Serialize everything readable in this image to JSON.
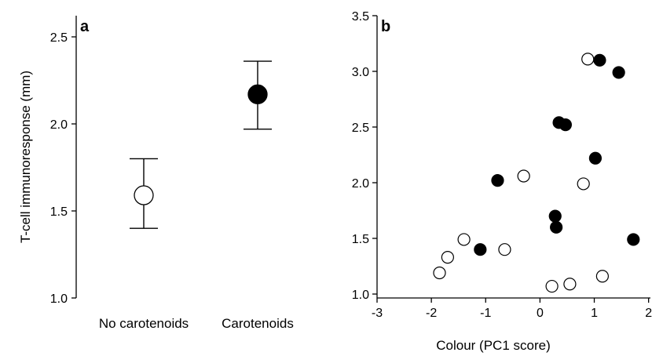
{
  "chart_data": [
    {
      "type": "scatter",
      "panel_label": "a",
      "title": "",
      "ylabel": "T-cell immunoresponse (mm)",
      "xlabel": "",
      "ylim": [
        1.0,
        2.6
      ],
      "yticks": [
        "1.0",
        "1.5",
        "2.0",
        "2.5"
      ],
      "ytick_values": [
        1.0,
        1.5,
        2.0,
        2.5
      ],
      "categories": [
        "No carotenoids",
        "Carotenoids"
      ],
      "points": [
        {
          "category": "No carotenoids",
          "mean": 1.59,
          "lower": 1.4,
          "upper": 1.8,
          "fill": "open"
        },
        {
          "category": "Carotenoids",
          "mean": 2.17,
          "lower": 1.97,
          "upper": 2.36,
          "fill": "filled"
        }
      ]
    },
    {
      "type": "scatter",
      "panel_label": "b",
      "title": "",
      "xlabel": "Colour (PC1 score)",
      "ylabel": "",
      "xlim": [
        -3,
        2
      ],
      "ylim": [
        1.0,
        3.5
      ],
      "xticks": [
        "-3",
        "-2",
        "-1",
        "0",
        "1",
        "2"
      ],
      "xtick_values": [
        -3,
        -2,
        -1,
        0,
        1,
        2
      ],
      "yticks": [
        "1.0",
        "1.5",
        "2.0",
        "2.5",
        "3.0",
        "3.5"
      ],
      "ytick_values": [
        1.0,
        1.5,
        2.0,
        2.5,
        3.0,
        3.5
      ],
      "open_points": [
        [
          -1.85,
          1.19
        ],
        [
          -1.7,
          1.33
        ],
        [
          -1.4,
          1.49
        ],
        [
          -0.65,
          1.4
        ],
        [
          -0.3,
          2.06
        ],
        [
          0.22,
          1.07
        ],
        [
          0.55,
          1.09
        ],
        [
          0.8,
          1.99
        ],
        [
          0.88,
          3.11
        ],
        [
          1.15,
          1.16
        ]
      ],
      "filled_points": [
        [
          -1.1,
          1.4
        ],
        [
          -0.78,
          2.02
        ],
        [
          0.28,
          1.7
        ],
        [
          0.3,
          1.6
        ],
        [
          0.35,
          2.54
        ],
        [
          0.47,
          2.52
        ],
        [
          1.02,
          2.22
        ],
        [
          1.1,
          3.1
        ],
        [
          1.45,
          2.99
        ],
        [
          1.72,
          1.49
        ]
      ]
    }
  ],
  "colors": {
    "marker_filled": "#000000",
    "marker_open_fill": "#ffffff",
    "stroke": "#000000"
  }
}
